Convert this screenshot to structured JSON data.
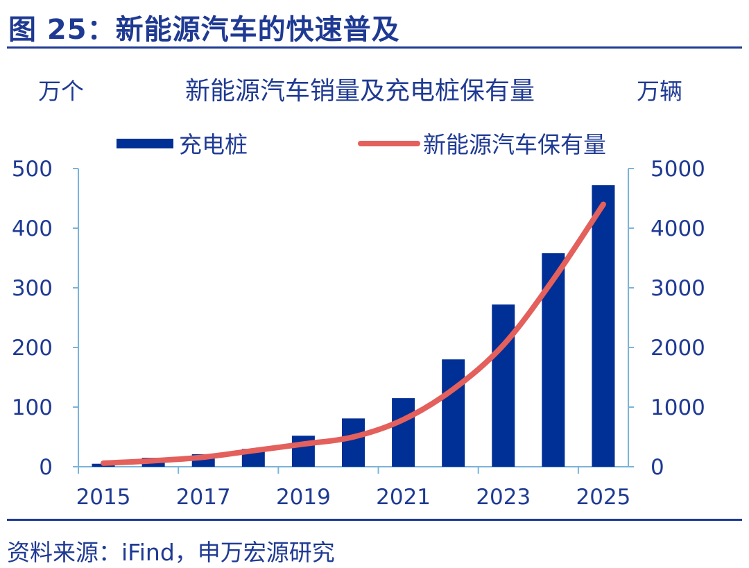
{
  "figure": {
    "title": "图 25：新能源汽车的快速普及",
    "source": "资料来源：iFind，申万宏源研究"
  },
  "colors": {
    "bar": "#002f95",
    "line": "#e3605c",
    "text": "#1f3a93",
    "axis": "#7bb3d9"
  },
  "chart_data": {
    "type": "bar",
    "title": "新能源汽车销量及充电桩保有量",
    "ylabel_left": "万个",
    "ylabel_right": "万辆",
    "categories": [
      "2015",
      "2016",
      "2017",
      "2018",
      "2019",
      "2020",
      "2021",
      "2022",
      "2023",
      "2024",
      "2025"
    ],
    "x_tick_labels": [
      "2015",
      "2017",
      "2019",
      "2021",
      "2023",
      "2025"
    ],
    "ylim_left": [
      0,
      500
    ],
    "ylim_right": [
      0,
      5000
    ],
    "yticks_left": [
      "0",
      "100",
      "200",
      "300",
      "400",
      "500"
    ],
    "yticks_right": [
      "0",
      "1000",
      "2000",
      "3000",
      "4000",
      "5000"
    ],
    "grid": false,
    "legend_position": "top",
    "series": [
      {
        "name": "充电桩",
        "type": "bar",
        "axis": "left",
        "values": [
          5,
          15,
          21,
          30,
          52,
          81,
          115,
          180,
          272,
          358,
          472
        ]
      },
      {
        "name": "新能源汽车保有量",
        "type": "line",
        "axis": "right",
        "values": [
          60,
          100,
          160,
          270,
          380,
          500,
          790,
          1300,
          2040,
          3140,
          4400
        ]
      }
    ]
  }
}
